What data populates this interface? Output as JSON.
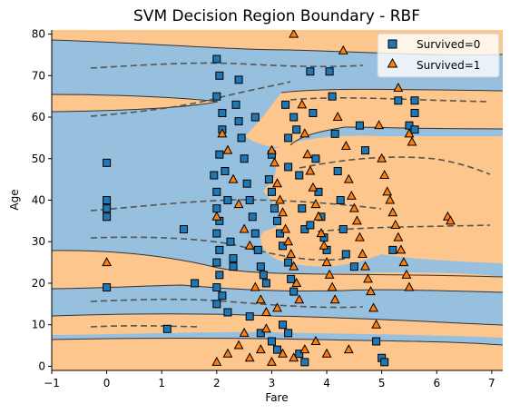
{
  "chart_data": {
    "type": "scatter",
    "title": "SVM Decision Region Boundary - RBF",
    "xlabel": "Fare",
    "ylabel": "Age",
    "xlim": [
      -1,
      7.2
    ],
    "ylim": [
      -1,
      81
    ],
    "xticks": [
      -1,
      0,
      1,
      2,
      3,
      4,
      5,
      6,
      7
    ],
    "yticks": [
      0,
      10,
      20,
      30,
      40,
      50,
      60,
      70,
      80
    ],
    "legend_position": "top-right",
    "region_colors": {
      "class0": "#97bfde",
      "class1": "#fdc68d"
    },
    "series": [
      {
        "name": "Survived=0",
        "marker": "square",
        "color": "#1f77b4",
        "points": [
          [
            0,
            49
          ],
          [
            0,
            40
          ],
          [
            0,
            38
          ],
          [
            0,
            36
          ],
          [
            0,
            19
          ],
          [
            1.1,
            9
          ],
          [
            1.4,
            33
          ],
          [
            1.6,
            20
          ],
          [
            2.0,
            74
          ],
          [
            2.0,
            65
          ],
          [
            2.05,
            70
          ],
          [
            2.1,
            61
          ],
          [
            2.1,
            57
          ],
          [
            2.05,
            51
          ],
          [
            1.95,
            46
          ],
          [
            2.0,
            42
          ],
          [
            2.0,
            38
          ],
          [
            2.05,
            35
          ],
          [
            2.0,
            32
          ],
          [
            2.05,
            28
          ],
          [
            2.0,
            25
          ],
          [
            2.05,
            22
          ],
          [
            2.0,
            19
          ],
          [
            2.1,
            17
          ],
          [
            2.0,
            15
          ],
          [
            2.2,
            13
          ],
          [
            2.15,
            47
          ],
          [
            2.2,
            40
          ],
          [
            2.25,
            30
          ],
          [
            2.3,
            26
          ],
          [
            2.3,
            24
          ],
          [
            2.35,
            63
          ],
          [
            2.4,
            69
          ],
          [
            2.4,
            59
          ],
          [
            2.45,
            55
          ],
          [
            2.5,
            50
          ],
          [
            2.55,
            44
          ],
          [
            2.6,
            40
          ],
          [
            2.65,
            36
          ],
          [
            2.7,
            60
          ],
          [
            2.7,
            32
          ],
          [
            2.75,
            28
          ],
          [
            2.8,
            24
          ],
          [
            2.85,
            22
          ],
          [
            2.9,
            20
          ],
          [
            2.95,
            45
          ],
          [
            3.0,
            51
          ],
          [
            3.0,
            42
          ],
          [
            3.05,
            38
          ],
          [
            3.1,
            35
          ],
          [
            3.15,
            32
          ],
          [
            3.2,
            29
          ],
          [
            3.25,
            63
          ],
          [
            3.3,
            55
          ],
          [
            3.3,
            48
          ],
          [
            3.3,
            25
          ],
          [
            3.35,
            21
          ],
          [
            3.4,
            18
          ],
          [
            3.4,
            60
          ],
          [
            3.45,
            57
          ],
          [
            3.5,
            46
          ],
          [
            3.55,
            38
          ],
          [
            3.6,
            33
          ],
          [
            3.7,
            71
          ],
          [
            3.75,
            61
          ],
          [
            3.8,
            50
          ],
          [
            3.85,
            42
          ],
          [
            3.9,
            36
          ],
          [
            3.95,
            31
          ],
          [
            4.0,
            28
          ],
          [
            4.05,
            71
          ],
          [
            4.1,
            65
          ],
          [
            4.15,
            56
          ],
          [
            4.2,
            47
          ],
          [
            4.25,
            40
          ],
          [
            4.3,
            33
          ],
          [
            4.35,
            27
          ],
          [
            4.5,
            24
          ],
          [
            4.6,
            58
          ],
          [
            4.7,
            52
          ],
          [
            4.9,
            6
          ],
          [
            5.0,
            2
          ],
          [
            5.05,
            1
          ],
          [
            5.2,
            28
          ],
          [
            5.3,
            64
          ],
          [
            5.5,
            58
          ],
          [
            5.6,
            64
          ],
          [
            5.6,
            61
          ],
          [
            5.6,
            57
          ],
          [
            2.6,
            12
          ],
          [
            2.8,
            8
          ],
          [
            3.0,
            6
          ],
          [
            3.1,
            4
          ],
          [
            3.2,
            10
          ],
          [
            3.3,
            8
          ],
          [
            3.5,
            3
          ],
          [
            3.6,
            1
          ],
          [
            3.7,
            34
          ]
        ]
      },
      {
        "name": "Survived=1",
        "marker": "triangle",
        "color": "#ff7f0e",
        "points": [
          [
            0,
            25
          ],
          [
            2.0,
            36
          ],
          [
            2.1,
            56
          ],
          [
            2.2,
            52
          ],
          [
            2.3,
            45
          ],
          [
            2.4,
            39
          ],
          [
            2.5,
            33
          ],
          [
            2.6,
            29
          ],
          [
            2.7,
            19
          ],
          [
            2.8,
            16
          ],
          [
            2.9,
            13
          ],
          [
            3.0,
            52
          ],
          [
            3.05,
            49
          ],
          [
            3.1,
            44
          ],
          [
            3.15,
            40
          ],
          [
            3.2,
            37
          ],
          [
            3.25,
            33
          ],
          [
            3.3,
            30
          ],
          [
            3.35,
            27
          ],
          [
            3.4,
            80
          ],
          [
            3.4,
            24
          ],
          [
            3.45,
            20
          ],
          [
            3.5,
            16
          ],
          [
            3.55,
            63
          ],
          [
            3.6,
            56
          ],
          [
            3.65,
            51
          ],
          [
            3.7,
            47
          ],
          [
            3.75,
            43
          ],
          [
            3.8,
            39
          ],
          [
            3.85,
            36
          ],
          [
            3.9,
            32
          ],
          [
            3.95,
            29
          ],
          [
            4.0,
            25
          ],
          [
            4.05,
            22
          ],
          [
            4.1,
            19
          ],
          [
            4.15,
            16
          ],
          [
            4.2,
            60
          ],
          [
            4.3,
            76
          ],
          [
            4.35,
            53
          ],
          [
            4.4,
            45
          ],
          [
            4.45,
            41
          ],
          [
            4.5,
            38
          ],
          [
            4.55,
            35
          ],
          [
            4.6,
            31
          ],
          [
            4.65,
            27
          ],
          [
            4.7,
            24
          ],
          [
            4.75,
            21
          ],
          [
            4.8,
            18
          ],
          [
            4.85,
            14
          ],
          [
            4.9,
            10
          ],
          [
            4.95,
            58
          ],
          [
            5.0,
            50
          ],
          [
            5.05,
            46
          ],
          [
            5.1,
            42
          ],
          [
            5.15,
            40
          ],
          [
            5.2,
            37
          ],
          [
            5.25,
            34
          ],
          [
            5.3,
            67
          ],
          [
            5.3,
            31
          ],
          [
            5.35,
            28
          ],
          [
            5.4,
            25
          ],
          [
            5.45,
            22
          ],
          [
            5.5,
            19
          ],
          [
            5.5,
            56
          ],
          [
            5.55,
            54
          ],
          [
            6.2,
            36
          ],
          [
            6.25,
            35
          ],
          [
            2.0,
            1
          ],
          [
            2.2,
            3
          ],
          [
            2.4,
            5
          ],
          [
            2.6,
            2
          ],
          [
            2.8,
            4
          ],
          [
            3.0,
            1
          ],
          [
            3.2,
            3
          ],
          [
            3.4,
            2
          ],
          [
            3.6,
            4
          ],
          [
            3.8,
            6
          ],
          [
            4.4,
            4
          ],
          [
            4.0,
            3
          ],
          [
            2.5,
            8
          ],
          [
            2.9,
            9
          ],
          [
            3.1,
            14
          ]
        ]
      }
    ]
  }
}
